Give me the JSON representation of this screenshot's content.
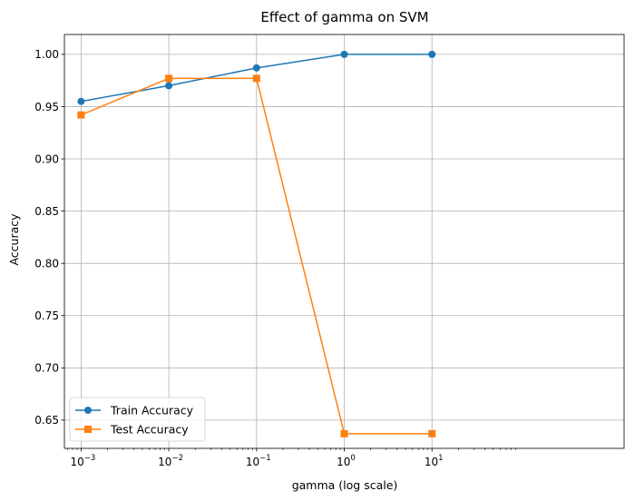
{
  "chart_data": {
    "type": "line",
    "title": "Effect of gamma on SVM",
    "xlabel": "gamma (log scale)",
    "ylabel": "Accuracy",
    "x_scale": "log",
    "x": [
      0.001,
      0.01,
      0.1,
      1,
      10
    ],
    "x_tick_labels": [
      {
        "base": "10",
        "exp": "−3"
      },
      {
        "base": "10",
        "exp": "−2"
      },
      {
        "base": "10",
        "exp": "−1"
      },
      {
        "base": "10",
        "exp": "0"
      },
      {
        "base": "10",
        "exp": "1"
      }
    ],
    "xlim_log10": [
      -3.19,
      3.19
    ],
    "ylim": [
      0.623,
      1.019
    ],
    "y_ticks": [
      0.65,
      0.7,
      0.75,
      0.8,
      0.85,
      0.9,
      0.95,
      1.0
    ],
    "y_tick_labels": [
      "0.65",
      "0.70",
      "0.75",
      "0.80",
      "0.85",
      "0.90",
      "0.95",
      "1.00"
    ],
    "grid": true,
    "legend_position": "lower-left",
    "series": [
      {
        "name": "Train Accuracy",
        "color": "#1f77b4",
        "marker": "circle",
        "values": [
          0.955,
          0.97,
          0.987,
          1.0,
          1.0
        ]
      },
      {
        "name": "Test Accuracy",
        "color": "#ff7f0e",
        "marker": "square",
        "values": [
          0.942,
          0.977,
          0.977,
          0.637,
          0.637
        ]
      }
    ]
  }
}
